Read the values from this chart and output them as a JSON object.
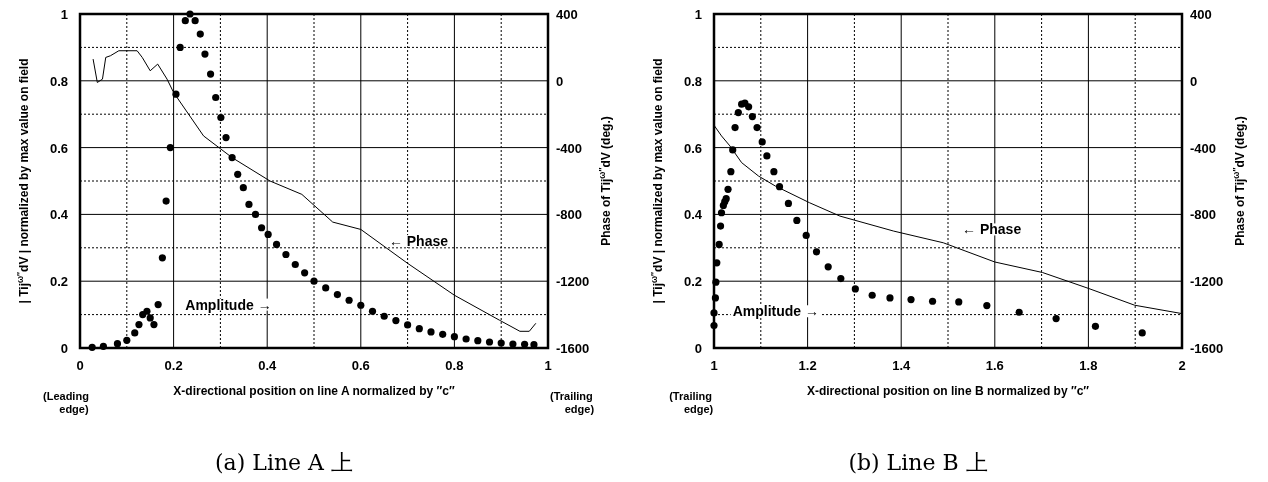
{
  "chart_data": [
    {
      "type": "scatter",
      "title": "(a) Line A 上",
      "xlabel": "X-directional position on line A normalized by ″c″",
      "ylabel": "| Tij$^{ω″}$dV |  normalized by max value on field",
      "y2label": "Phase of  Tij$^{ω″}$dV  (deg.)",
      "grid": true,
      "xlim": [
        0,
        1
      ],
      "xticks": [
        0,
        0.2,
        0.4,
        0.6,
        0.8,
        1
      ],
      "ylim": [
        0,
        1
      ],
      "yticks": [
        0,
        0.2,
        0.4,
        0.6,
        0.8,
        1
      ],
      "y2lim": [
        -1600,
        400
      ],
      "y2ticks": [
        400,
        0,
        -400,
        -800,
        -1200,
        -1600
      ],
      "series": [
        {
          "marker": "circle",
          "color": "#000000",
          "x": [
            0.026,
            0.05,
            0.08,
            0.1,
            0.117,
            0.126,
            0.134,
            0.143,
            0.15,
            0.158,
            0.167,
            0.176,
            0.184,
            0.193,
            0.205,
            0.214,
            0.225,
            0.235,
            0.246,
            0.257,
            0.267,
            0.279,
            0.29,
            0.301,
            0.312,
            0.325,
            0.337,
            0.349,
            0.361,
            0.375,
            0.388,
            0.402,
            0.42,
            0.44,
            0.46,
            0.48,
            0.5,
            0.525,
            0.55,
            0.575,
            0.6,
            0.625,
            0.65,
            0.675,
            0.7,
            0.725,
            0.75,
            0.775,
            0.8,
            0.825,
            0.85,
            0.875,
            0.9,
            0.925,
            0.95,
            0.97
          ],
          "values": [
            0.002,
            0.005,
            0.013,
            0.023,
            0.045,
            0.07,
            0.1,
            0.11,
            0.09,
            0.07,
            0.13,
            0.27,
            0.44,
            0.6,
            0.76,
            0.9,
            0.98,
            1.0,
            0.98,
            0.94,
            0.88,
            0.82,
            0.75,
            0.69,
            0.63,
            0.57,
            0.52,
            0.48,
            0.43,
            0.4,
            0.36,
            0.34,
            0.31,
            0.28,
            0.25,
            0.225,
            0.2,
            0.18,
            0.16,
            0.143,
            0.128,
            0.11,
            0.095,
            0.082,
            0.069,
            0.058,
            0.048,
            0.041,
            0.034,
            0.027,
            0.022,
            0.018,
            0.015,
            0.012,
            0.011,
            0.01
          ]
        },
        {
          "type": "line",
          "axis": "y2",
          "color": "#000000",
          "x": [
            0.028,
            0.037,
            0.048,
            0.055,
            0.065,
            0.083,
            0.122,
            0.133,
            0.15,
            0.166,
            0.186,
            0.2,
            0.264,
            0.325,
            0.406,
            0.474,
            0.54,
            0.6,
            0.7,
            0.8,
            0.896,
            0.94,
            0.96,
            0.974
          ],
          "values": [
            130,
            -10,
            10,
            140,
            150,
            180,
            180,
            140,
            60,
            100,
            10,
            -70,
            -330,
            -460,
            -600,
            -680,
            -846,
            -890,
            -1093,
            -1284,
            -1433,
            -1500,
            -1500,
            -1452
          ]
        }
      ],
      "annotations": [
        "Amplitude →",
        "← Phase",
        "(Leading edge)",
        "(Trailing edge)"
      ]
    },
    {
      "type": "scatter",
      "title": "(b) Line B 上",
      "xlabel": "X-directional position on line B normalized by ″c″",
      "ylabel": "| Tij$^{ω″}$dV |  normalized by max value on field",
      "y2label": "Phase of  Tij$^{ω″}$dV  (deg.)",
      "grid": true,
      "xlim": [
        1,
        2
      ],
      "xticks": [
        1,
        1.2,
        1.4,
        1.6,
        1.8,
        2
      ],
      "ylim": [
        0,
        1
      ],
      "yticks": [
        0,
        0.2,
        0.4,
        0.6,
        0.8,
        1
      ],
      "y2lim": [
        -1600,
        400
      ],
      "y2ticks": [
        400,
        0,
        -400,
        -800,
        -1200,
        -1600
      ],
      "series": [
        {
          "marker": "circle",
          "color": "#000000",
          "x": [
            1.0,
            1.0,
            1.003,
            1.004,
            1.006,
            1.011,
            1.014,
            1.016,
            1.02,
            1.023,
            1.026,
            1.03,
            1.036,
            1.04,
            1.045,
            1.052,
            1.059,
            1.066,
            1.074,
            1.082,
            1.092,
            1.103,
            1.113,
            1.128,
            1.14,
            1.159,
            1.177,
            1.197,
            1.219,
            1.244,
            1.271,
            1.302,
            1.338,
            1.376,
            1.421,
            1.467,
            1.523,
            1.583,
            1.652,
            1.731,
            1.815,
            1.915
          ],
          "values": [
            0.067,
            0.105,
            0.15,
            0.197,
            0.255,
            0.31,
            0.365,
            0.405,
            0.427,
            0.438,
            0.447,
            0.475,
            0.528,
            0.593,
            0.66,
            0.705,
            0.73,
            0.733,
            0.722,
            0.693,
            0.66,
            0.617,
            0.575,
            0.528,
            0.483,
            0.433,
            0.382,
            0.337,
            0.288,
            0.243,
            0.208,
            0.177,
            0.158,
            0.15,
            0.145,
            0.14,
            0.138,
            0.127,
            0.107,
            0.088,
            0.065,
            0.045
          ]
        },
        {
          "type": "line",
          "axis": "y2",
          "color": "#000000",
          "x": [
            1.001,
            1.016,
            1.034,
            1.059,
            1.095,
            1.131,
            1.204,
            1.269,
            1.384,
            1.49,
            1.6,
            1.702,
            1.8,
            1.899,
            2.0
          ],
          "values": [
            -270,
            -330,
            -390,
            -490,
            -570,
            -630,
            -730,
            -810,
            -900,
            -970,
            -1085,
            -1148,
            -1243,
            -1344,
            -1394
          ]
        }
      ],
      "annotations": [
        "Amplitude →",
        "← Phase",
        "(Trailing edge)"
      ]
    }
  ]
}
